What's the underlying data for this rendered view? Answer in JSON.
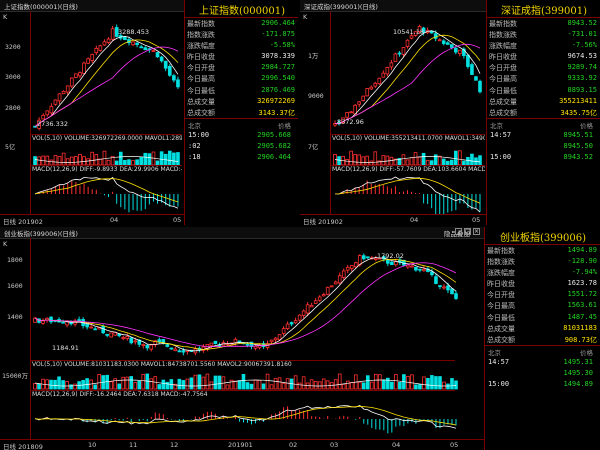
{
  "windows": [
    {
      "title": "上证指数(000001)(日线)",
      "info_title": "上证指数(000001)",
      "k_mark": "K",
      "y_ticks": [
        "3200",
        "3000",
        "2800"
      ],
      "anno_high": "3288.453",
      "anno_low": "2736.332",
      "vol_label": "5亿",
      "vol_text": "VOL(5,10) VOLUME:326972269.0000 MAVOL1:289628853",
      "macd_text": "MACD(12,26,9) DIFF:-9.8933 DEA:29.9906 MACD:-79.7674",
      "x_first": "日线 201902",
      "x_ticks": [
        "04",
        "05"
      ],
      "stats": [
        {
          "label": "最新指数",
          "value": "2906.464",
          "color": "g"
        },
        {
          "label": "指数涨跌",
          "value": "-171.875",
          "color": "g"
        },
        {
          "label": "涨跌幅度",
          "value": "-5.58%",
          "color": "g"
        },
        {
          "label": "昨日收盘",
          "value": "3078.339",
          "color": "w"
        },
        {
          "label": "今日开盘",
          "value": "2984.727",
          "color": "g"
        },
        {
          "label": "今日最高",
          "value": "2996.540",
          "color": "g"
        },
        {
          "label": "今日最低",
          "value": "2876.469",
          "color": "g"
        },
        {
          "label": "总成交量",
          "value": "326972269",
          "color": "y"
        },
        {
          "label": "总成交额",
          "value": "3143.37亿",
          "color": "y"
        }
      ],
      "tick_header": [
        "北京",
        "价格"
      ],
      "ticks": [
        {
          "time": "15:00",
          "price": "2905.668"
        },
        {
          "time": ":02",
          "price": "2905.682"
        },
        {
          "time": ":18",
          "price": "2906.464"
        }
      ]
    },
    {
      "title": "深证成指(399001)(日线)",
      "info_title": "深证成指(399001)",
      "k_mark": "K",
      "y_ticks": [
        "1万",
        "9000"
      ],
      "anno_high": "10541.18",
      "anno_low": "8372.96",
      "vol_label": "7亿",
      "vol_text": "VOL(5,10) VOLUME:355213411.0700 MAVOL1:349098617",
      "macd_text": "MACD(12,26,9) DIFF:-57.7609 DEA:103.6604 MACD:-322.8",
      "x_first": "日线 201902",
      "x_ticks": [
        "04",
        "05"
      ],
      "stats": [
        {
          "label": "最新指数",
          "value": "8943.52",
          "color": "g"
        },
        {
          "label": "指数涨跌",
          "value": "-731.01",
          "color": "g"
        },
        {
          "label": "涨跌幅度",
          "value": "-7.56%",
          "color": "g"
        },
        {
          "label": "昨日收盘",
          "value": "9674.53",
          "color": "w"
        },
        {
          "label": "今日开盘",
          "value": "9289.74",
          "color": "g"
        },
        {
          "label": "今日最高",
          "value": "9333.92",
          "color": "g"
        },
        {
          "label": "今日最低",
          "value": "8893.15",
          "color": "g"
        },
        {
          "label": "总成交量",
          "value": "355213411",
          "color": "y"
        },
        {
          "label": "总成交额",
          "value": "3435.75亿",
          "color": "y"
        }
      ],
      "tick_header": [
        "北京",
        "价格"
      ],
      "ticks": [
        {
          "time": "14:57",
          "price": "8945.51"
        },
        {
          "time": "",
          "price": "8945.50"
        },
        {
          "time": "15:00",
          "price": "8943.52"
        }
      ]
    },
    {
      "title": "创业板指(399006)(日线)",
      "info_title": "创业板指(399006)",
      "k_mark": "K",
      "plus_label": "隐品叠加",
      "y_ticks": [
        "1800",
        "1600",
        "1400"
      ],
      "anno_high": "1792.02",
      "anno_low": "1184.91",
      "vol_label": "15000万",
      "vol_text": "VOL(5,10) VOLUME:81031183.0300 MAVOL1:84738701.5560 MAVOL2:90067391.8160",
      "macd_text": "MACD(12,26,9) DIFF:-16.2464 DEA:7.6318 MACD:-47.7564",
      "x_first": "日线 201809",
      "x_ticks": [
        "10",
        "11",
        "12",
        "201901",
        "02",
        "03",
        "04",
        "05"
      ],
      "stats": [
        {
          "label": "最新指数",
          "value": "1494.89",
          "color": "g"
        },
        {
          "label": "指数涨跌",
          "value": "-128.90",
          "color": "g"
        },
        {
          "label": "涨跌幅度",
          "value": "-7.94%",
          "color": "g"
        },
        {
          "label": "昨日收盘",
          "value": "1623.78",
          "color": "w"
        },
        {
          "label": "今日开盘",
          "value": "1551.72",
          "color": "g"
        },
        {
          "label": "今日最高",
          "value": "1563.61",
          "color": "g"
        },
        {
          "label": "今日最低",
          "value": "1487.45",
          "color": "g"
        },
        {
          "label": "总成交量",
          "value": "81031183",
          "color": "y"
        },
        {
          "label": "总成交额",
          "value": "908.73亿",
          "color": "y"
        }
      ],
      "tick_header": [
        "北京",
        "价格"
      ],
      "ticks": [
        {
          "time": "14:57",
          "price": "1495.31"
        },
        {
          "time": "",
          "price": "1495.30"
        },
        {
          "time": "15:00",
          "price": "1494.89"
        }
      ]
    }
  ]
}
